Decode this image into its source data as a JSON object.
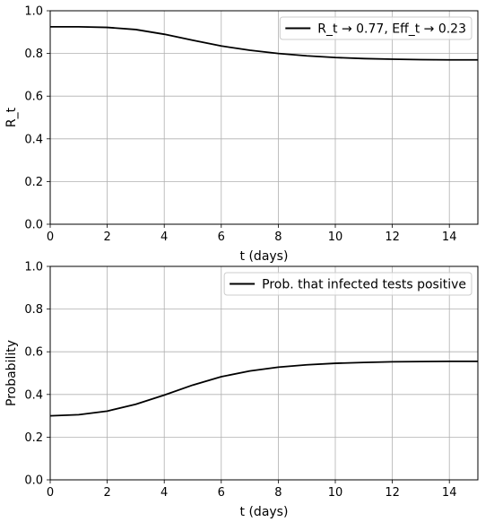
{
  "chart_data": [
    {
      "type": "line",
      "xlabel": "t (days)",
      "ylabel": "R_t",
      "xlim": [
        0,
        15
      ],
      "ylim": [
        0,
        1
      ],
      "xticks": [
        "0",
        "2",
        "4",
        "6",
        "8",
        "10",
        "12",
        "14"
      ],
      "yticks": [
        "0.0",
        "0.2",
        "0.4",
        "0.6",
        "0.8",
        "1.0"
      ],
      "grid": true,
      "legend_position": "top-right",
      "series": [
        {
          "name": "R_t → 0.77, Eff_t → 0.23",
          "color": "#000000",
          "x": [
            0,
            1,
            2,
            3,
            4,
            5,
            6,
            7,
            8,
            9,
            10,
            11,
            12,
            13,
            14,
            15
          ],
          "y": [
            0.925,
            0.925,
            0.922,
            0.912,
            0.89,
            0.862,
            0.835,
            0.815,
            0.8,
            0.789,
            0.781,
            0.776,
            0.773,
            0.771,
            0.77,
            0.77
          ]
        }
      ]
    },
    {
      "type": "line",
      "xlabel": "t (days)",
      "ylabel": "Probability",
      "xlim": [
        0,
        15
      ],
      "ylim": [
        0,
        1
      ],
      "xticks": [
        "0",
        "2",
        "4",
        "6",
        "8",
        "10",
        "12",
        "14"
      ],
      "yticks": [
        "0.0",
        "0.2",
        "0.4",
        "0.6",
        "0.8",
        "1.0"
      ],
      "grid": true,
      "legend_position": "top-right",
      "series": [
        {
          "name": "Prob. that infected tests positive",
          "color": "#000000",
          "x": [
            0,
            1,
            2,
            3,
            4,
            5,
            6,
            7,
            8,
            9,
            10,
            11,
            12,
            13,
            14,
            15
          ],
          "y": [
            0.3,
            0.305,
            0.322,
            0.354,
            0.397,
            0.444,
            0.483,
            0.51,
            0.528,
            0.539,
            0.546,
            0.55,
            0.553,
            0.554,
            0.555,
            0.555
          ]
        }
      ]
    }
  ]
}
